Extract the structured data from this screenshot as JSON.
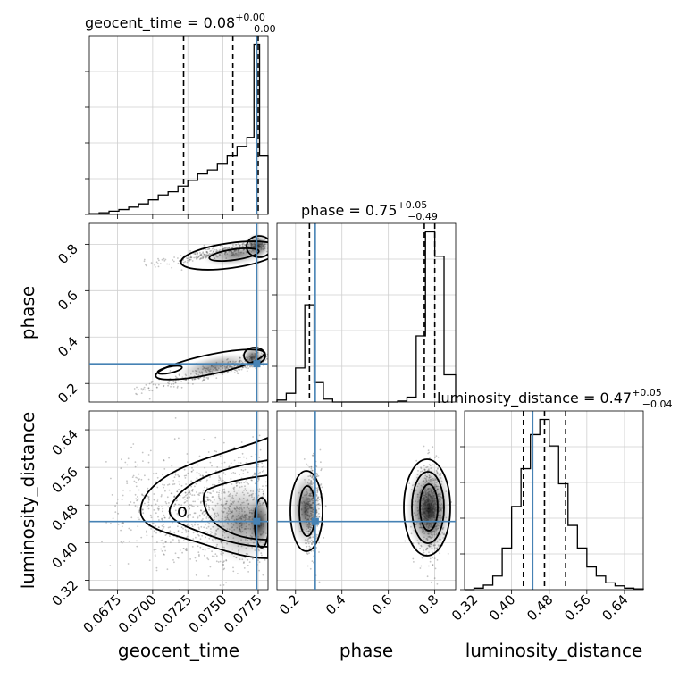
{
  "chart_data": {
    "type": "corner",
    "parameters": [
      "geocent_time",
      "phase",
      "luminosity_distance"
    ],
    "axis_labels": {
      "geocent_time": "geocent_time",
      "phase": "phase",
      "luminosity_distance": "luminosity_distance"
    },
    "ranges": {
      "geocent_time": [
        0.0655,
        0.0782
      ],
      "phase": [
        0.12,
        0.89
      ],
      "luminosity_distance": [
        0.3,
        0.68
      ]
    },
    "ticks": {
      "geocent_time": [
        "0.0675",
        "0.0700",
        "0.0725",
        "0.0750",
        "0.0775"
      ],
      "phase_x": [
        "0.2",
        "0.4",
        "0.6",
        "0.8"
      ],
      "phase_y": [
        "0.2",
        "0.4",
        "0.6",
        "0.8"
      ],
      "luminosity_distance": [
        "0.32",
        "0.40",
        "0.48",
        "0.56",
        "0.64"
      ]
    },
    "truth": {
      "geocent_time": 0.0774,
      "phase": 0.285,
      "luminosity_distance": 0.445
    },
    "titles": [
      {
        "param": "geocent_time",
        "prefix": "geocent_time = 0.08",
        "plus": "+0.00",
        "minus": "−0.00"
      },
      {
        "param": "phase",
        "prefix": "phase = 0.75",
        "plus": "+0.05",
        "minus": "−0.49"
      },
      {
        "param": "luminosity_distance",
        "prefix": "luminosity_distance = 0.47",
        "plus": "+0.05",
        "minus": "−0.04"
      }
    ],
    "quantiles": {
      "geocent_time": [
        0.0722,
        0.0757,
        0.0775
      ],
      "phase": [
        0.26,
        0.755,
        0.8
      ],
      "luminosity_distance": [
        0.425,
        0.47,
        0.515
      ]
    },
    "histograms": {
      "geocent_time": {
        "edges": [
          0.0655,
          0.0662,
          0.0669,
          0.0676,
          0.0683,
          0.069,
          0.0697,
          0.0704,
          0.0711,
          0.0718,
          0.0725,
          0.0732,
          0.0739,
          0.0746,
          0.0753,
          0.076,
          0.0767,
          0.0772,
          0.0776,
          0.0782
        ],
        "counts": [
          1,
          2,
          4,
          6,
          9,
          13,
          18,
          24,
          28,
          35,
          42,
          50,
          55,
          62,
          72,
          84,
          95,
          210,
          72
        ]
      },
      "phase": {
        "edges": [
          0.12,
          0.16,
          0.2,
          0.24,
          0.28,
          0.32,
          0.36,
          0.4,
          0.44,
          0.48,
          0.52,
          0.56,
          0.6,
          0.64,
          0.68,
          0.72,
          0.76,
          0.8,
          0.84,
          0.89
        ],
        "counts": [
          2,
          9,
          35,
          100,
          20,
          3,
          0,
          0,
          0,
          0,
          0,
          0,
          0,
          1,
          5,
          68,
          175,
          150,
          28
        ]
      },
      "luminosity_distance": {
        "edges": [
          0.3,
          0.32,
          0.34,
          0.36,
          0.38,
          0.4,
          0.42,
          0.44,
          0.46,
          0.48,
          0.5,
          0.52,
          0.54,
          0.56,
          0.58,
          0.6,
          0.62,
          0.64,
          0.66,
          0.68
        ],
        "counts": [
          0,
          2,
          6,
          18,
          55,
          110,
          160,
          205,
          225,
          190,
          140,
          85,
          55,
          30,
          18,
          9,
          5,
          2,
          1
        ]
      }
    }
  }
}
